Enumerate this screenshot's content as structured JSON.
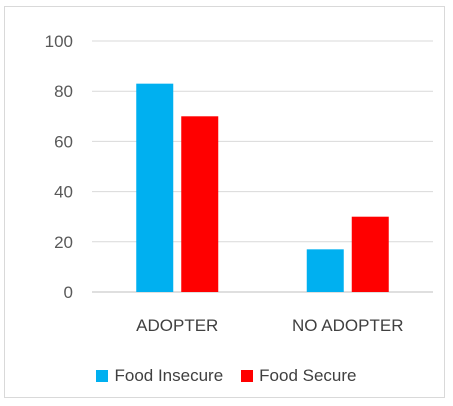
{
  "chart_data": {
    "type": "bar",
    "categories": [
      "ADOPTER",
      "NO ADOPTER"
    ],
    "series": [
      {
        "name": "Food Insecure",
        "values": [
          83,
          17
        ],
        "color": "#00B0F0"
      },
      {
        "name": "Food Secure",
        "values": [
          70,
          30
        ],
        "color": "#FF0000"
      }
    ],
    "ylim": [
      0,
      100
    ],
    "yticks": [
      0,
      20,
      40,
      60,
      80,
      100
    ],
    "grid": true,
    "legend_position": "bottom"
  }
}
